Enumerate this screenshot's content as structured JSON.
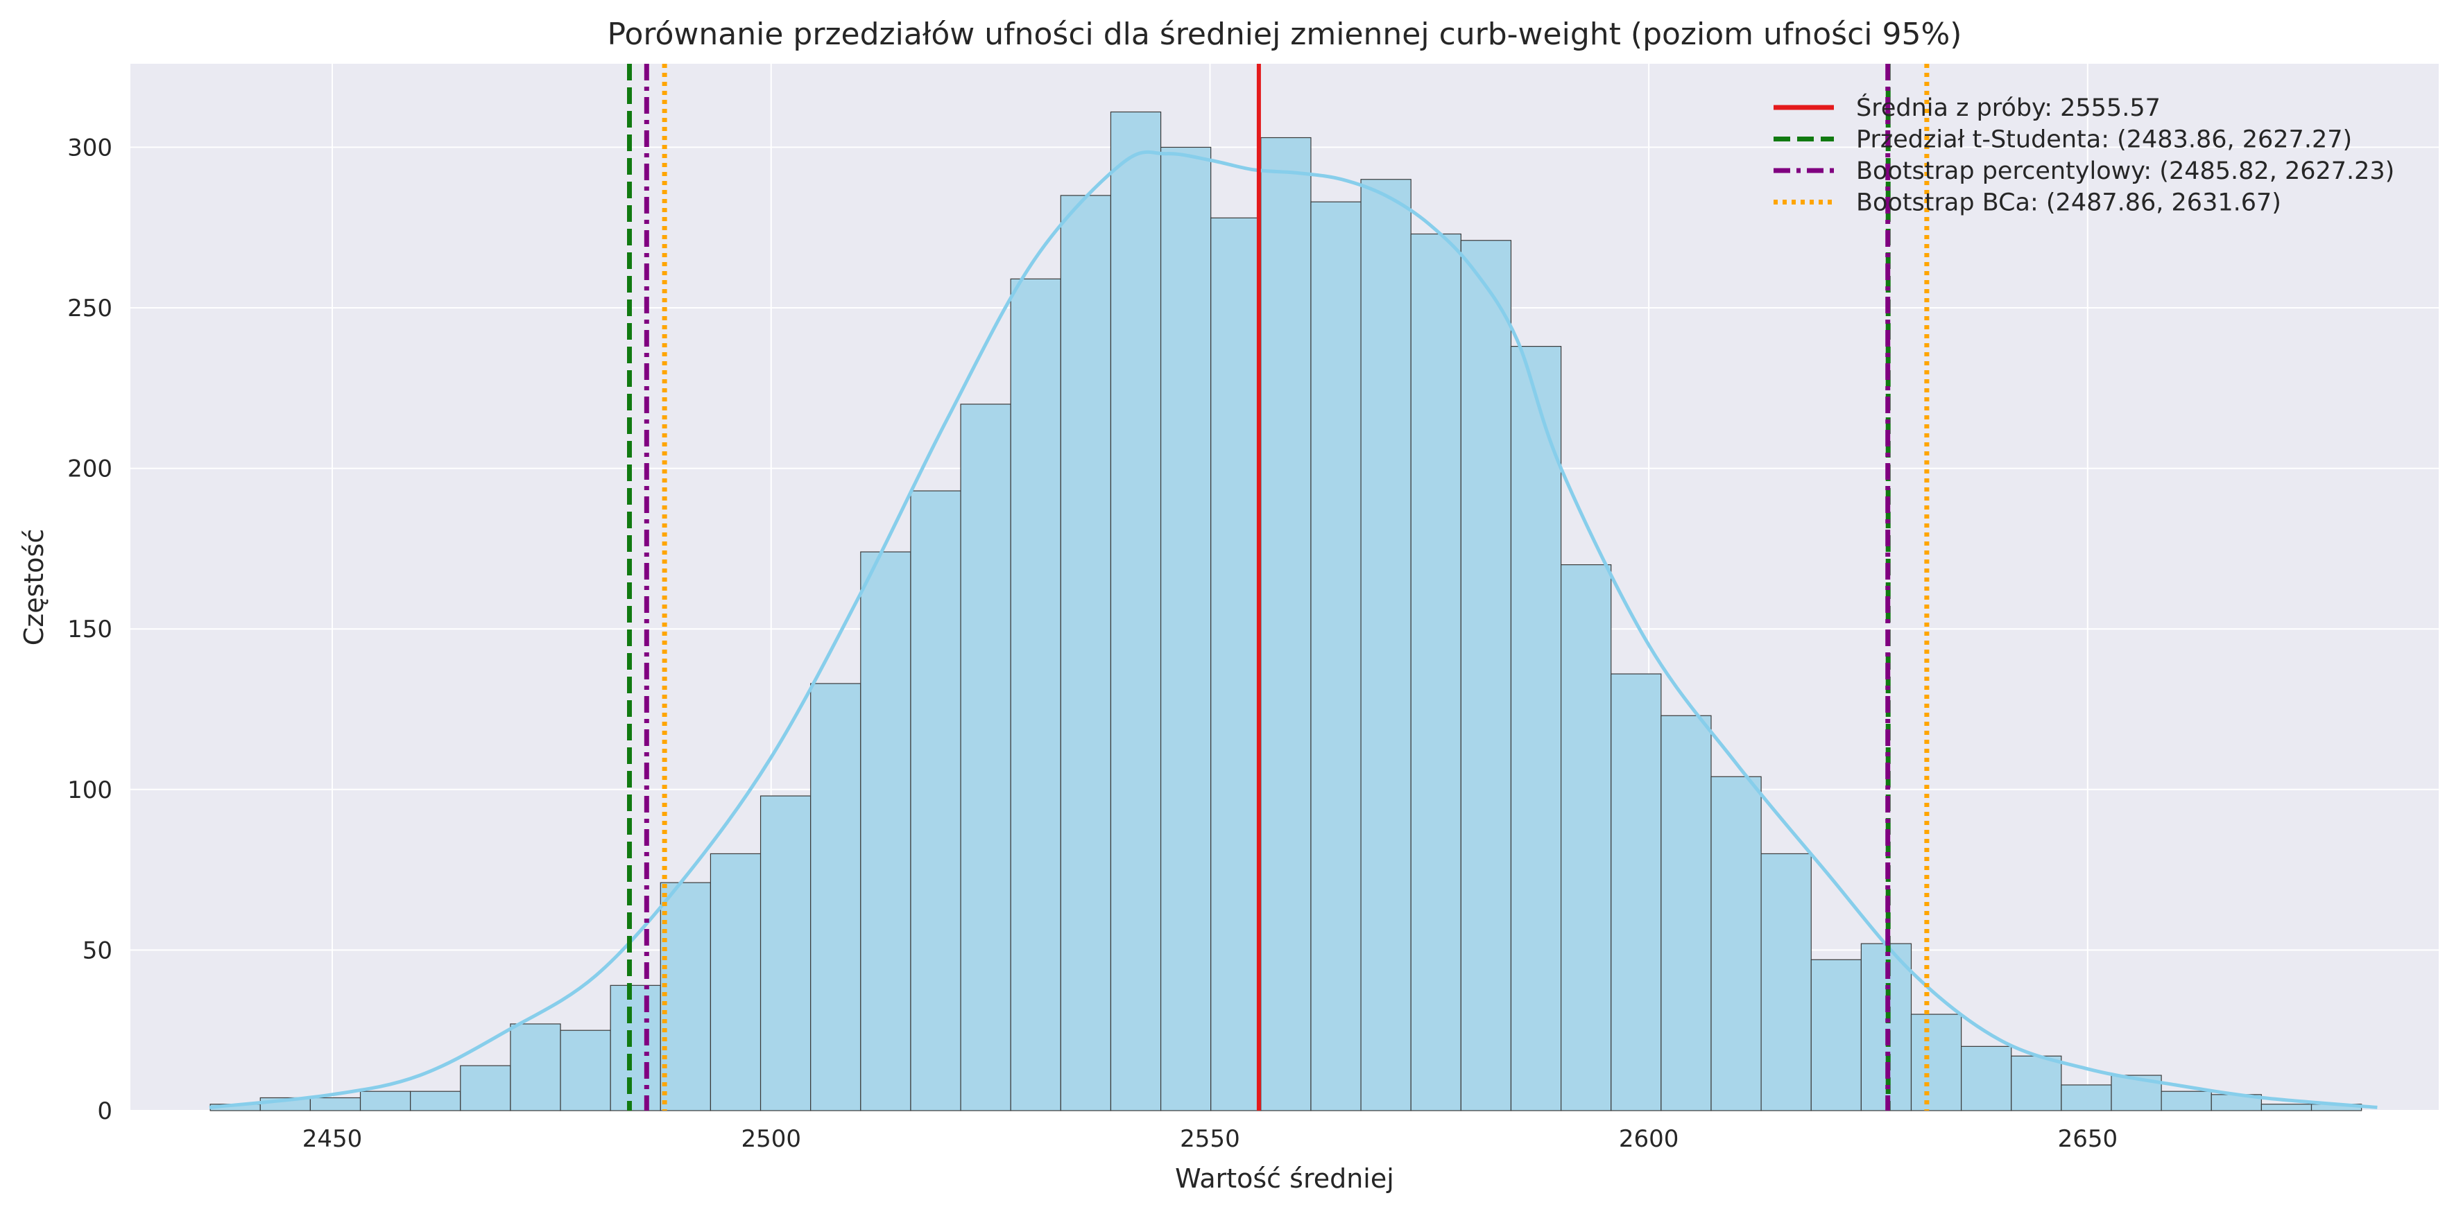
{
  "chart_data": {
    "type": "bar",
    "title": "Porównanie przedziałów ufności dla średniej zmiennej curb-weight (poziom ufności 95%)",
    "xlabel": "Wartość średniej",
    "ylabel": "Częstość",
    "xlim": [
      2427,
      2690
    ],
    "ylim": [
      0,
      326
    ],
    "xticks": [
      2450,
      2500,
      2550,
      2600,
      2650
    ],
    "yticks": [
      0,
      50,
      100,
      150,
      200,
      250,
      300
    ],
    "grid": true,
    "legend_position": "top-right",
    "histogram": {
      "bin_start": 2436.1,
      "bin_width": 5.7,
      "counts": [
        2,
        4,
        4,
        6,
        6,
        14,
        27,
        25,
        39,
        71,
        80,
        98,
        133,
        174,
        193,
        220,
        259,
        285,
        311,
        300,
        278,
        303,
        283,
        290,
        273,
        271,
        238,
        170,
        136,
        123,
        104,
        80,
        47,
        52,
        30,
        20,
        17,
        8,
        11,
        6,
        5,
        2,
        2
      ],
      "color": "#a9d6ea"
    },
    "kde": {
      "x": [
        2436,
        2450,
        2460,
        2470,
        2480,
        2490,
        2500,
        2510,
        2520,
        2530,
        2540,
        2545,
        2550,
        2555,
        2560,
        2565,
        2570,
        2575,
        2580,
        2585,
        2590,
        2600,
        2610,
        2620,
        2630,
        2640,
        2650,
        2660,
        2670,
        2683
      ],
      "y": [
        1,
        5,
        11,
        25,
        42,
        72,
        110,
        160,
        215,
        265,
        295,
        298,
        296,
        293,
        292,
        290,
        285,
        276,
        262,
        240,
        200,
        145,
        108,
        75,
        43,
        22,
        13,
        8,
        4,
        1
      ],
      "color": "#87ceeb"
    },
    "series": [
      {
        "name": "Średnia z próby: 2555.57",
        "x": [
          2555.57
        ],
        "color": "#e41a1c",
        "style": "solid"
      },
      {
        "name": "Przedział t-Studenta: (2483.86, 2627.27)",
        "x": [
          2483.86,
          2627.27
        ],
        "color": "#117a11",
        "style": "dashed"
      },
      {
        "name": "Bootstrap percentylowy: (2485.82, 2627.23)",
        "x": [
          2485.82,
          2627.23
        ],
        "color": "#800080",
        "style": "dashdot"
      },
      {
        "name": "Bootstrap BCa: (2487.86, 2631.67)",
        "x": [
          2487.86,
          2631.67
        ],
        "color": "#ffa500",
        "style": "dotted"
      }
    ]
  }
}
